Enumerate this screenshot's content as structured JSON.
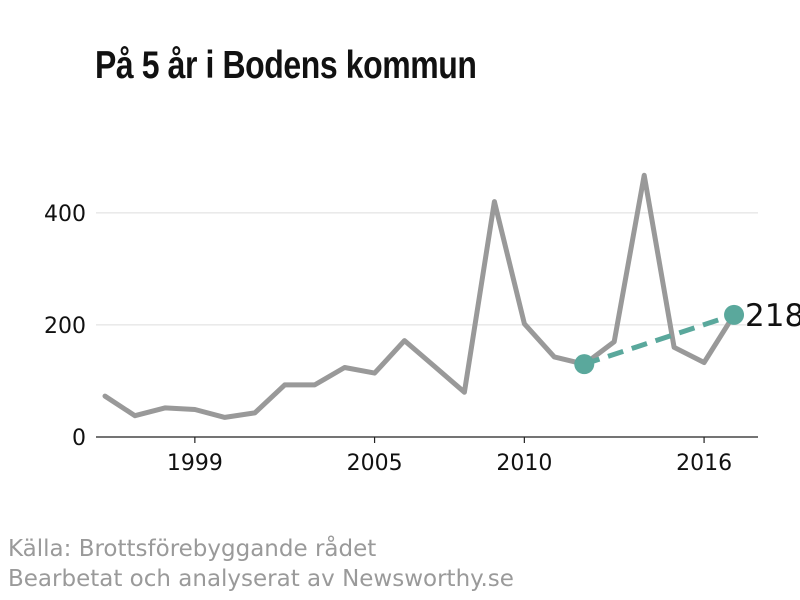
{
  "title": "På 5 år i Bodens kommun",
  "source": {
    "line1": "Källa: Brottsförebyggande rådet",
    "line2": "Bearbetat och analyserat av Newsworthy.se"
  },
  "colors": {
    "series": "#999999",
    "highlight": "#5aa89c",
    "axis": "#222222",
    "grid": "#dddddd",
    "text": "#111111",
    "source": "#9a9a9a"
  },
  "chart_data": {
    "type": "line",
    "title": "På 5 år i Bodens kommun",
    "xlabel": "",
    "ylabel": "",
    "xlim": [
      1995.7,
      2017.8
    ],
    "ylim": [
      0,
      530
    ],
    "x_ticks": [
      1999,
      2005,
      2010,
      2016
    ],
    "y_ticks": [
      0,
      200,
      400
    ],
    "grid": "horizontal",
    "series": [
      {
        "x": [
          1996,
          1997,
          1998,
          1999,
          2000,
          2001,
          2002,
          2003,
          2004,
          2005,
          2006,
          2007,
          2008,
          2009,
          2010,
          2011,
          2012,
          2013,
          2014,
          2015,
          2016,
          2017
        ],
        "y": [
          73,
          38,
          52,
          49,
          35,
          43,
          93,
          93,
          124,
          114,
          172,
          126,
          80,
          420,
          202,
          143,
          130,
          170,
          467,
          160,
          133,
          218
        ]
      }
    ],
    "highlight": {
      "from": {
        "x": 2012,
        "y": 130
      },
      "to": {
        "x": 2017,
        "y": 218
      },
      "label": "218"
    }
  }
}
